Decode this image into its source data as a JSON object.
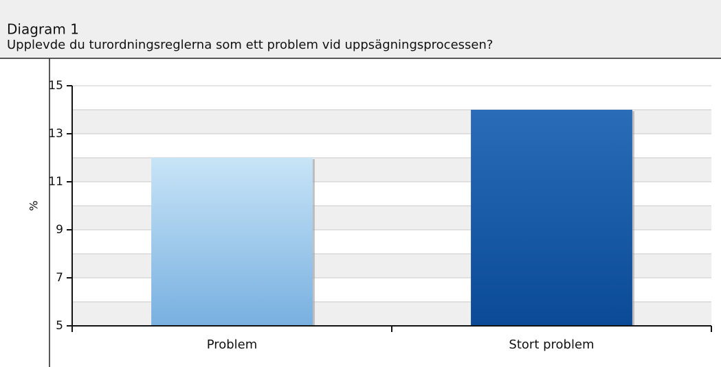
{
  "chart_data": {
    "type": "bar",
    "title": "Diagram 1",
    "subtitle": "Upplevde du turordningsreglerna som ett problem vid uppsägningsprocessen?",
    "ylabel": "%",
    "categories": [
      "Problem",
      "Stort problem"
    ],
    "values": [
      12,
      14
    ],
    "colors": [
      [
        "#c8e4f7",
        "#78b0e0"
      ],
      [
        "#2a6cb8",
        "#0a4a96"
      ]
    ],
    "ylim": [
      5,
      15
    ],
    "yticks": [
      5,
      7,
      9,
      11,
      13,
      15
    ],
    "grid": true
  }
}
